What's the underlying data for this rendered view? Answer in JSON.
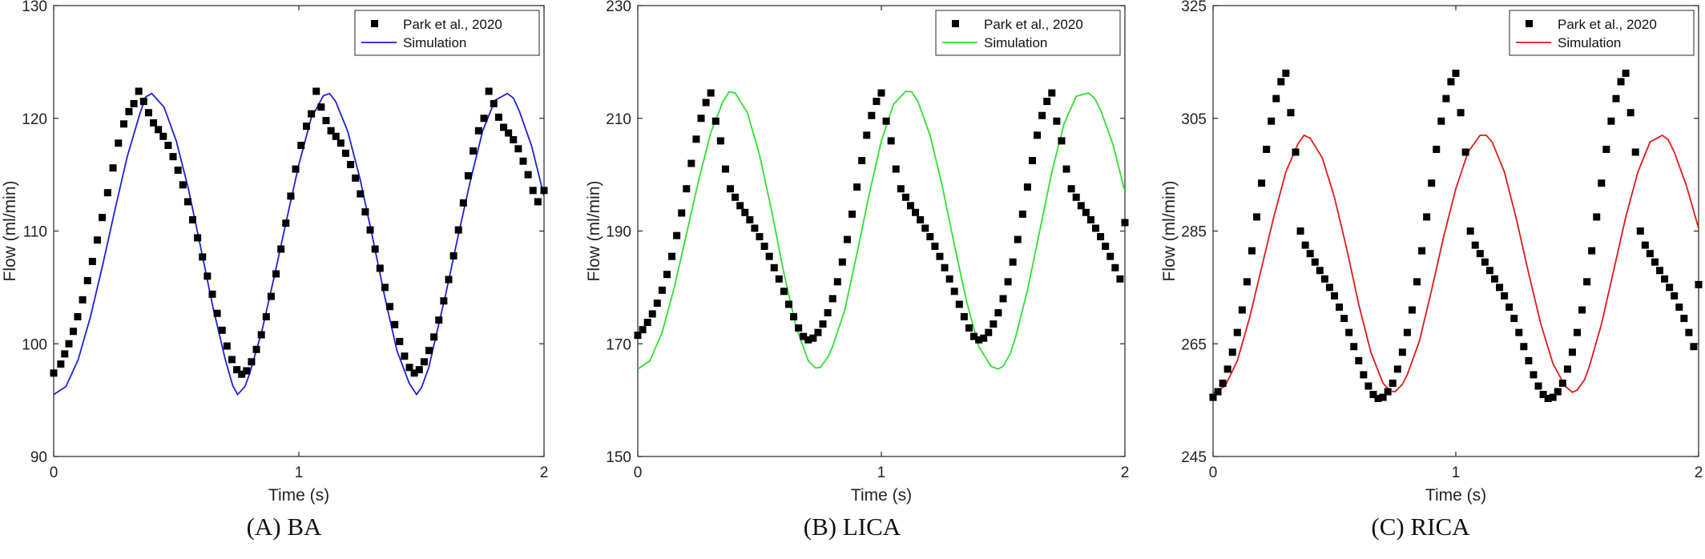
{
  "figure_captions": [
    "(A) BA",
    "(B) LICA",
    "(C) RICA"
  ],
  "chart_data": [
    {
      "type": "scatter+line",
      "caption": "(A) BA",
      "xlabel": "Time (s)",
      "ylabel": "Flow (ml/min)",
      "xlim": [
        0,
        2
      ],
      "xticks": [
        0,
        1,
        2
      ],
      "ylim": [
        90,
        130
      ],
      "yticks": [
        90,
        100,
        110,
        120,
        130
      ],
      "grid": false,
      "legend_position": "top-right",
      "sim_color": "#1f1fd6",
      "series": [
        {
          "name": "Park et al., 2020",
          "kind": "markers",
          "x": [
            0.0,
            0.029,
            0.045,
            0.062,
            0.08,
            0.098,
            0.118,
            0.138,
            0.158,
            0.178,
            0.198,
            0.22,
            0.242,
            0.264,
            0.286,
            0.307,
            0.327,
            0.347,
            0.367,
            0.387,
            0.407,
            0.427,
            0.447,
            0.467,
            0.487,
            0.507,
            0.527,
            0.547,
            0.567,
            0.587,
            0.607,
            0.627,
            0.647,
            0.667,
            0.687,
            0.707,
            0.727,
            0.747,
            0.767,
            0.787,
            0.807,
            0.827,
            0.847,
            0.867,
            0.887,
            0.907,
            0.927,
            0.947,
            0.967,
            0.987,
            1.009,
            1.031,
            1.051,
            1.071,
            1.091,
            1.111,
            1.131,
            1.151,
            1.171,
            1.191,
            1.211,
            1.231,
            1.251,
            1.271,
            1.291,
            1.311,
            1.331,
            1.351,
            1.371,
            1.391,
            1.411,
            1.431,
            1.451,
            1.471,
            1.491,
            1.511,
            1.531,
            1.551,
            1.571,
            1.591,
            1.611,
            1.631,
            1.651,
            1.671,
            1.691,
            1.711,
            1.733,
            1.755,
            1.775,
            1.795,
            1.815,
            1.835,
            1.855,
            1.875,
            1.895,
            1.915,
            1.935,
            1.955,
            1.975,
            2.0
          ],
          "y": [
            97.4,
            98.2,
            99.1,
            100.0,
            101.1,
            102.4,
            103.9,
            105.6,
            107.3,
            109.2,
            111.2,
            113.4,
            115.6,
            117.8,
            119.5,
            120.6,
            121.3,
            122.4,
            121.5,
            120.5,
            119.6,
            119.0,
            118.4,
            117.6,
            116.6,
            115.4,
            114.1,
            112.6,
            111.0,
            109.4,
            107.7,
            106.0,
            104.4,
            102.7,
            101.2,
            99.8,
            98.6,
            97.7,
            97.3,
            97.6,
            98.4,
            99.5,
            100.8,
            102.4,
            104.2,
            106.2,
            108.4,
            110.7,
            113.1,
            115.5,
            117.6,
            119.3,
            120.4,
            122.4,
            121.0,
            119.8,
            118.9,
            118.4,
            117.8,
            116.9,
            115.9,
            114.7,
            113.3,
            111.7,
            110.1,
            108.4,
            106.7,
            105.0,
            103.3,
            101.7,
            100.2,
            98.9,
            97.9,
            97.4,
            97.7,
            98.4,
            99.4,
            100.6,
            102.1,
            103.8,
            105.7,
            107.8,
            110.1,
            112.5,
            114.9,
            117.1,
            118.9,
            120.0,
            122.4,
            121.3,
            120.1,
            119.2,
            118.7,
            118.1,
            117.3,
            116.2,
            115.0,
            113.6,
            112.6,
            113.6
          ]
        },
        {
          "name": "Simulation",
          "kind": "line",
          "x": [
            0.0,
            0.05,
            0.1,
            0.15,
            0.2,
            0.25,
            0.3,
            0.35,
            0.375,
            0.4,
            0.45,
            0.5,
            0.55,
            0.6,
            0.65,
            0.7,
            0.73,
            0.75,
            0.78,
            0.8,
            0.85,
            0.9,
            0.95,
            1.0,
            1.05,
            1.1,
            1.125,
            1.15,
            1.2,
            1.25,
            1.3,
            1.35,
            1.4,
            1.45,
            1.48,
            1.5,
            1.53,
            1.55,
            1.6,
            1.65,
            1.7,
            1.75,
            1.8,
            1.85,
            1.875,
            1.9,
            1.95,
            2.0
          ],
          "y": [
            95.5,
            96.2,
            98.6,
            102.4,
            107.0,
            111.9,
            116.6,
            120.3,
            121.9,
            122.2,
            121.0,
            118.0,
            113.7,
            108.5,
            103.2,
            98.6,
            96.3,
            95.5,
            96.2,
            97.4,
            101.2,
            106.0,
            111.0,
            115.9,
            120.0,
            122.0,
            122.2,
            121.5,
            118.8,
            114.6,
            109.5,
            104.2,
            99.4,
            96.5,
            95.5,
            96.1,
            97.9,
            99.8,
            104.5,
            109.6,
            114.5,
            118.9,
            121.6,
            122.2,
            121.8,
            120.6,
            117.5,
            113.1
          ]
        }
      ]
    },
    {
      "type": "scatter+line",
      "caption": "(B) LICA",
      "xlabel": "Time (s)",
      "ylabel": "Flow (ml/min)",
      "xlim": [
        0,
        2
      ],
      "xticks": [
        0,
        1,
        2
      ],
      "ylim": [
        150,
        230
      ],
      "yticks": [
        150,
        170,
        190,
        210,
        230
      ],
      "grid": false,
      "legend_position": "top-right",
      "sim_color": "#2ee12e",
      "series": [
        {
          "name": "Park et al., 2020",
          "kind": "markers",
          "x": [
            0.0,
            0.02,
            0.04,
            0.06,
            0.08,
            0.1,
            0.12,
            0.14,
            0.16,
            0.18,
            0.2,
            0.22,
            0.24,
            0.26,
            0.28,
            0.3,
            0.32,
            0.34,
            0.36,
            0.38,
            0.4,
            0.42,
            0.44,
            0.46,
            0.48,
            0.5,
            0.52,
            0.54,
            0.56,
            0.58,
            0.6,
            0.62,
            0.64,
            0.66,
            0.68,
            0.7,
            0.72,
            0.74,
            0.76,
            0.78,
            0.8,
            0.82,
            0.84,
            0.86,
            0.88,
            0.9,
            0.92,
            0.94,
            0.96,
            0.98,
            1.0,
            1.02,
            1.04,
            1.06,
            1.08,
            1.1,
            1.12,
            1.14,
            1.16,
            1.18,
            1.2,
            1.22,
            1.24,
            1.26,
            1.28,
            1.3,
            1.32,
            1.34,
            1.36,
            1.38,
            1.4,
            1.42,
            1.44,
            1.46,
            1.48,
            1.5,
            1.52,
            1.54,
            1.56,
            1.58,
            1.6,
            1.62,
            1.64,
            1.66,
            1.68,
            1.7,
            1.72,
            1.74,
            1.76,
            1.78,
            1.8,
            1.82,
            1.84,
            1.86,
            1.88,
            1.9,
            1.92,
            1.94,
            1.96,
            1.98,
            2.0
          ],
          "y": [
            171.5,
            172.5,
            173.8,
            175.3,
            177.2,
            179.5,
            182.3,
            185.5,
            189.2,
            193.2,
            197.5,
            202.0,
            206.3,
            210.0,
            212.8,
            214.5,
            209.5,
            206.0,
            201.0,
            197.5,
            196.0,
            194.5,
            193.3,
            192.0,
            190.5,
            189.0,
            187.3,
            185.5,
            183.5,
            181.5,
            179.3,
            177.0,
            174.8,
            172.8,
            171.3,
            170.7,
            171.0,
            172.0,
            173.5,
            175.5,
            178.0,
            181.0,
            184.5,
            188.5,
            193.0,
            197.8,
            202.5,
            207.0,
            210.5,
            213.0,
            214.5,
            209.5,
            206.0,
            201.0,
            197.5,
            196.0,
            194.5,
            193.3,
            192.0,
            190.5,
            189.0,
            187.3,
            185.5,
            183.5,
            181.5,
            179.3,
            177.0,
            174.8,
            172.8,
            171.3,
            170.7,
            171.0,
            172.0,
            173.5,
            175.5,
            178.0,
            181.0,
            184.5,
            188.5,
            193.0,
            197.8,
            202.5,
            207.0,
            210.5,
            213.0,
            214.5,
            209.5,
            206.0,
            201.0,
            197.5,
            196.0,
            194.5,
            193.3,
            192.0,
            190.5,
            189.0,
            187.3,
            185.5,
            183.5,
            181.5,
            191.5
          ]
        },
        {
          "name": "Simulation",
          "kind": "line",
          "x": [
            0.0,
            0.05,
            0.1,
            0.15,
            0.2,
            0.25,
            0.3,
            0.35,
            0.375,
            0.4,
            0.45,
            0.5,
            0.55,
            0.6,
            0.65,
            0.7,
            0.73,
            0.75,
            0.78,
            0.8,
            0.85,
            0.9,
            0.95,
            1.0,
            1.05,
            1.1,
            1.125,
            1.15,
            1.2,
            1.25,
            1.3,
            1.35,
            1.4,
            1.45,
            1.48,
            1.5,
            1.53,
            1.55,
            1.6,
            1.65,
            1.7,
            1.75,
            1.8,
            1.85,
            1.875,
            1.9,
            1.95,
            2.0
          ],
          "y": [
            165.5,
            167.0,
            172.0,
            180.0,
            189.5,
            199.0,
            207.5,
            213.0,
            214.7,
            214.5,
            211.0,
            203.5,
            193.5,
            182.5,
            173.0,
            167.0,
            165.7,
            165.8,
            167.6,
            169.5,
            176.0,
            186.0,
            196.5,
            206.0,
            212.5,
            214.8,
            214.7,
            213.0,
            207.0,
            198.0,
            187.5,
            177.5,
            169.5,
            166.0,
            165.5,
            166.0,
            168.3,
            171.0,
            179.5,
            190.0,
            200.5,
            209.0,
            213.9,
            214.5,
            213.6,
            211.5,
            205.5,
            197.0
          ]
        }
      ]
    },
    {
      "type": "scatter+line",
      "caption": "(C) RICA",
      "xlabel": "Time (s)",
      "ylabel": "Flow (ml/min)",
      "xlim": [
        0,
        2
      ],
      "xticks": [
        0,
        1,
        2
      ],
      "ylim": [
        245,
        325
      ],
      "yticks": [
        245,
        265,
        285,
        305,
        325
      ],
      "grid": false,
      "legend_position": "top-right",
      "sim_color": "#e01a1a",
      "series": [
        {
          "name": "Park et al., 2020",
          "kind": "markers",
          "x": [
            0.0,
            0.02,
            0.04,
            0.06,
            0.08,
            0.1,
            0.12,
            0.14,
            0.16,
            0.18,
            0.2,
            0.22,
            0.24,
            0.26,
            0.28,
            0.3,
            0.32,
            0.34,
            0.36,
            0.38,
            0.4,
            0.42,
            0.44,
            0.46,
            0.48,
            0.5,
            0.52,
            0.54,
            0.56,
            0.58,
            0.6,
            0.62,
            0.64,
            0.66,
            0.68,
            0.7,
            0.72,
            0.74,
            0.76,
            0.78,
            0.8,
            0.82,
            0.84,
            0.86,
            0.88,
            0.9,
            0.92,
            0.94,
            0.96,
            0.98,
            1.0,
            1.02,
            1.04,
            1.06,
            1.08,
            1.1,
            1.12,
            1.14,
            1.16,
            1.18,
            1.2,
            1.22,
            1.24,
            1.26,
            1.28,
            1.3,
            1.32,
            1.34,
            1.36,
            1.38,
            1.4,
            1.42,
            1.44,
            1.46,
            1.48,
            1.5,
            1.52,
            1.54,
            1.56,
            1.58,
            1.6,
            1.62,
            1.64,
            1.66,
            1.68,
            1.7,
            1.72,
            1.74,
            1.76,
            1.78,
            1.8,
            1.82,
            1.84,
            1.86,
            1.88,
            1.9,
            1.92,
            1.94,
            1.96,
            1.98,
            2.0
          ],
          "y": [
            255.5,
            256.5,
            258.0,
            260.5,
            263.5,
            267.0,
            271.0,
            276.0,
            281.5,
            287.5,
            293.5,
            299.5,
            304.5,
            308.5,
            311.5,
            313.0,
            306.0,
            299.0,
            285.0,
            282.5,
            281.0,
            279.5,
            278.0,
            276.5,
            275.0,
            273.5,
            271.5,
            269.5,
            267.0,
            264.5,
            262.0,
            259.5,
            257.5,
            256.0,
            255.3,
            255.5,
            256.5,
            258.0,
            260.5,
            263.5,
            267.0,
            271.0,
            276.0,
            281.5,
            287.5,
            293.5,
            299.5,
            304.5,
            308.5,
            311.5,
            313.0,
            306.0,
            299.0,
            285.0,
            282.5,
            281.0,
            279.5,
            278.0,
            276.5,
            275.0,
            273.5,
            271.5,
            269.5,
            267.0,
            264.5,
            262.0,
            259.5,
            257.5,
            256.0,
            255.3,
            255.5,
            256.5,
            258.0,
            260.5,
            263.5,
            267.0,
            271.0,
            276.0,
            281.5,
            287.5,
            293.5,
            299.5,
            304.5,
            308.5,
            311.5,
            313.0,
            306.0,
            299.0,
            285.0,
            282.5,
            281.0,
            279.5,
            278.0,
            276.5,
            275.0,
            273.5,
            271.5,
            269.5,
            267.0,
            264.5,
            275.5
          ]
        },
        {
          "name": "Simulation",
          "kind": "line",
          "x": [
            0.0,
            0.05,
            0.1,
            0.15,
            0.2,
            0.25,
            0.3,
            0.35,
            0.375,
            0.4,
            0.45,
            0.5,
            0.55,
            0.6,
            0.65,
            0.7,
            0.73,
            0.75,
            0.78,
            0.8,
            0.85,
            0.9,
            0.95,
            1.0,
            1.05,
            1.1,
            1.125,
            1.15,
            1.2,
            1.25,
            1.3,
            1.35,
            1.4,
            1.45,
            1.48,
            1.5,
            1.53,
            1.55,
            1.6,
            1.65,
            1.7,
            1.75,
            1.8,
            1.85,
            1.875,
            1.9,
            1.95,
            2.0
          ],
          "y": [
            256.3,
            257.5,
            262.0,
            269.5,
            278.5,
            287.5,
            295.5,
            300.5,
            302.0,
            301.5,
            298.0,
            291.0,
            282.0,
            272.0,
            263.5,
            258.0,
            256.6,
            256.5,
            257.8,
            259.5,
            265.5,
            274.5,
            284.0,
            292.5,
            299.0,
            302.0,
            302.0,
            300.8,
            295.5,
            287.0,
            277.5,
            268.5,
            261.5,
            257.5,
            256.4,
            256.8,
            258.6,
            261.0,
            268.5,
            278.0,
            287.5,
            295.5,
            300.8,
            302.0,
            301.2,
            299.0,
            293.0,
            285.5
          ]
        }
      ]
    }
  ]
}
